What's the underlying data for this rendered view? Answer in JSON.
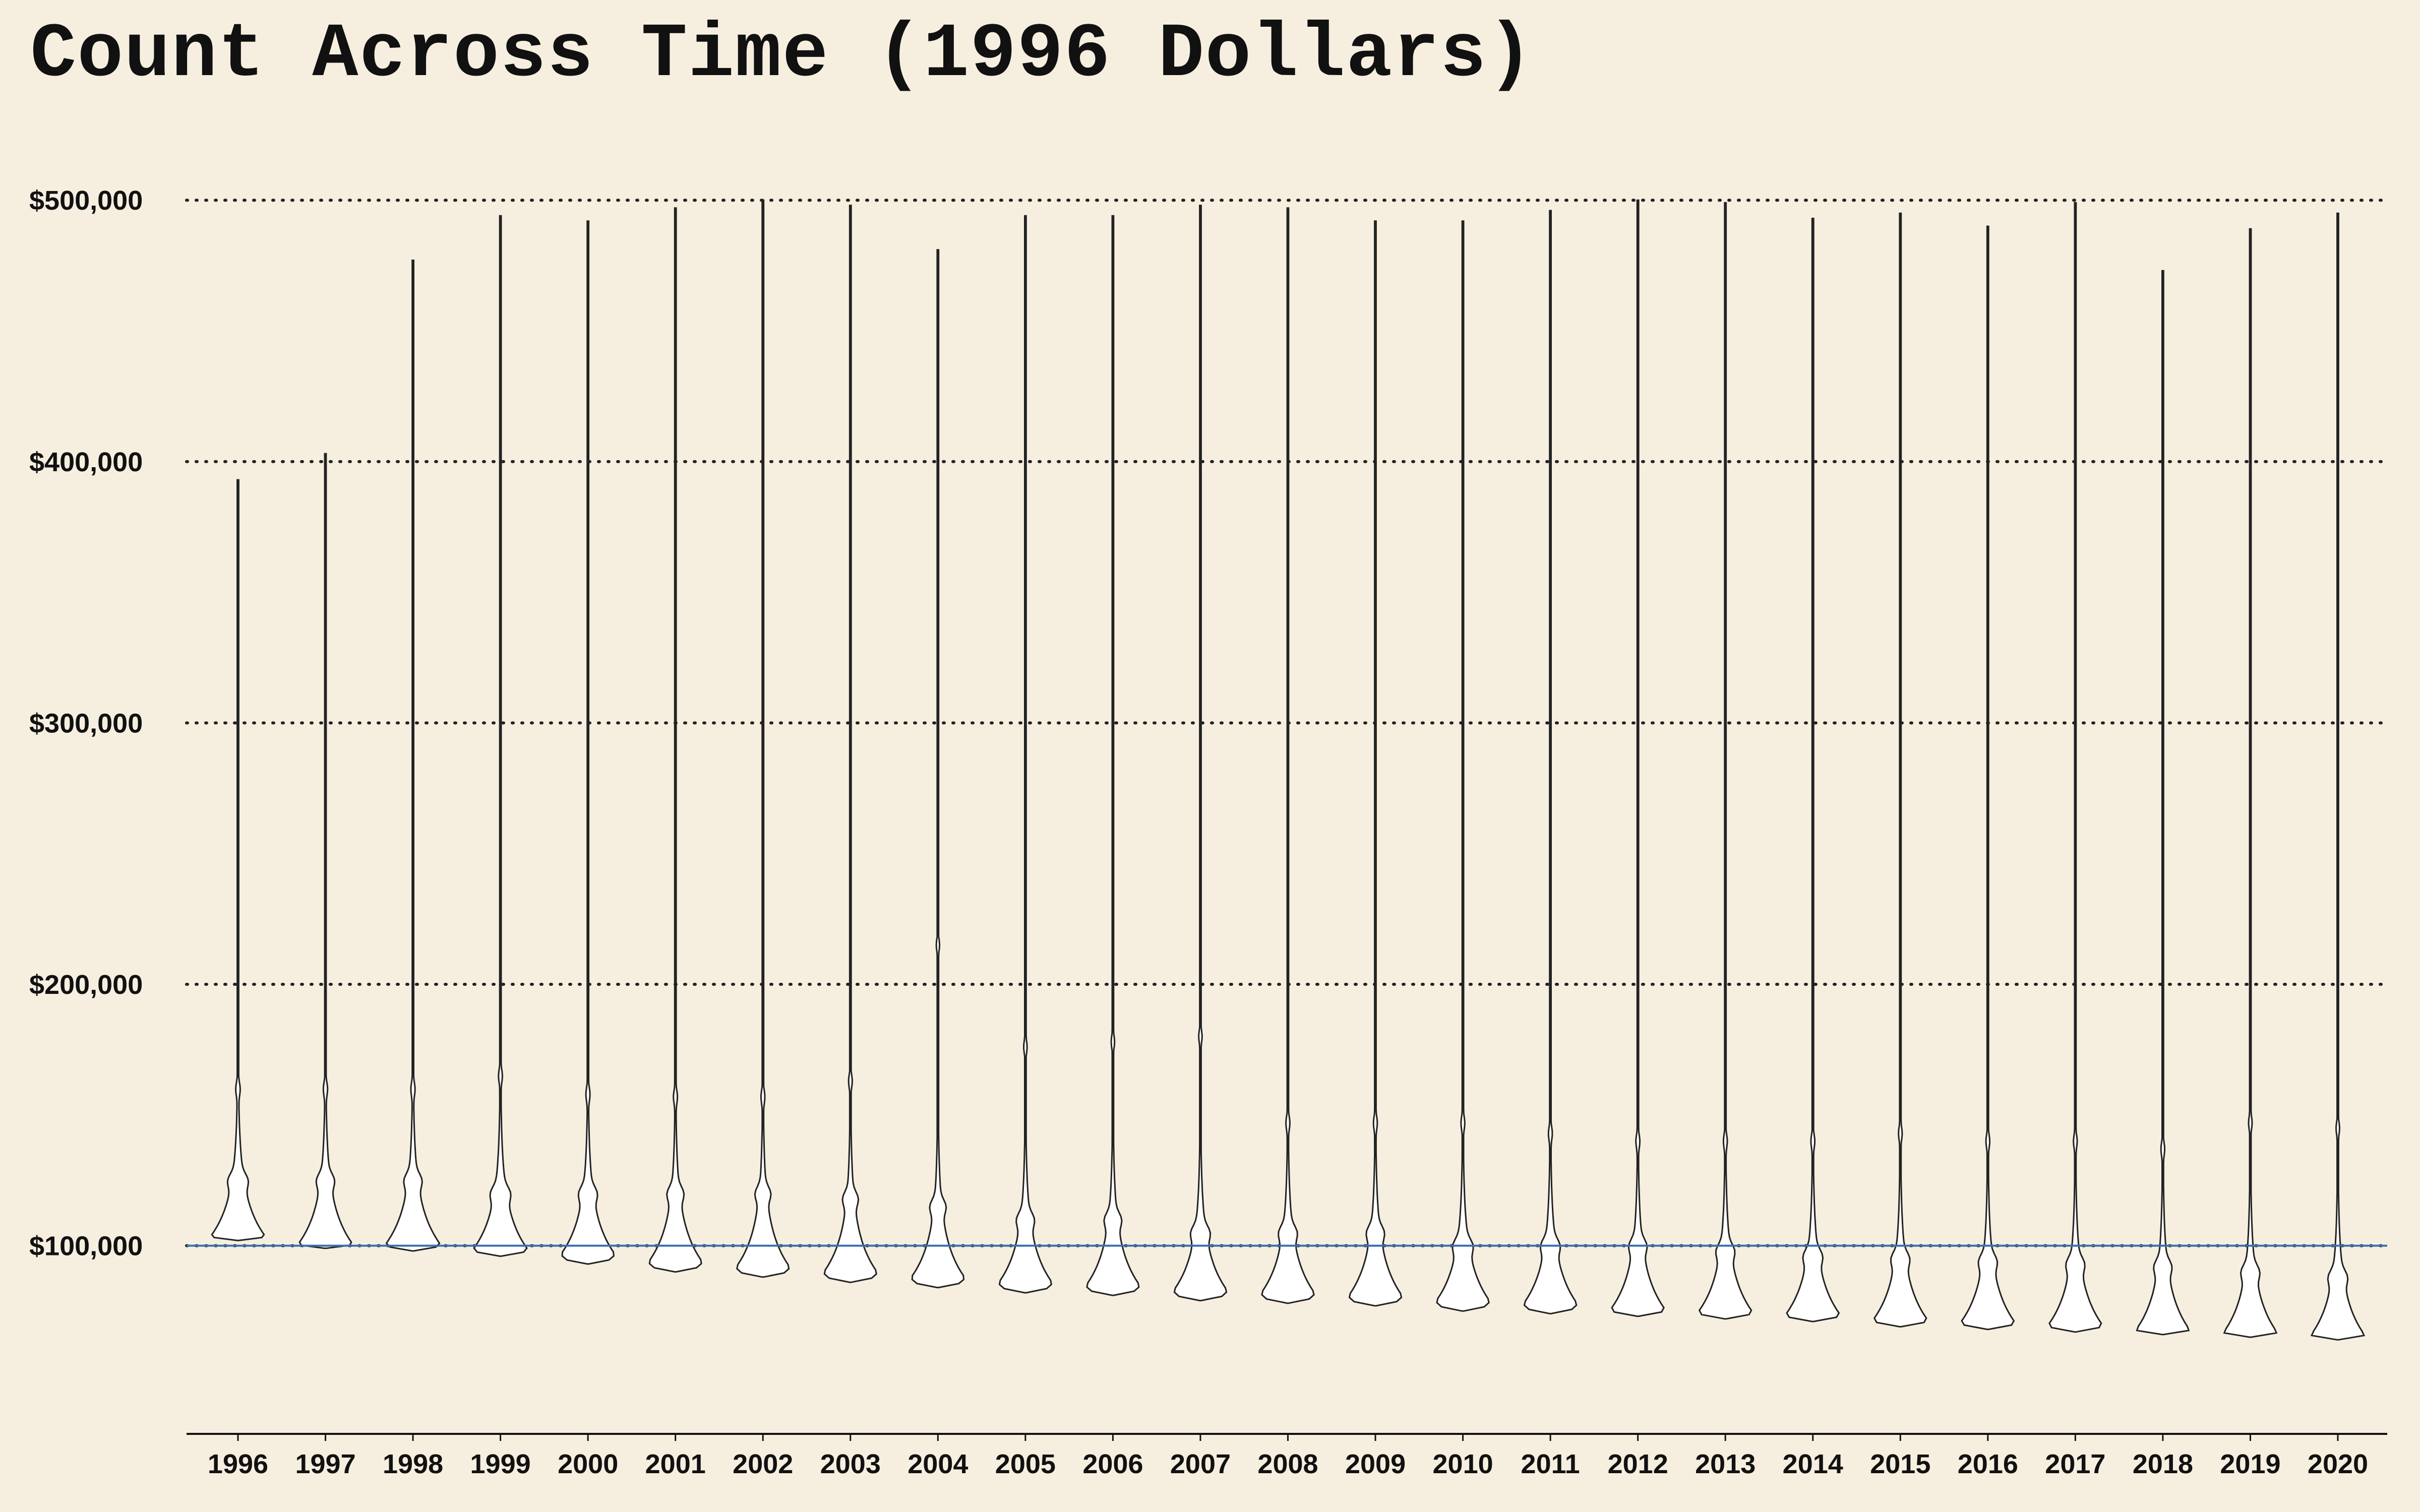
{
  "chart_data": {
    "type": "violin",
    "title": "Count Across Time (1996 Dollars)",
    "xlabel": "",
    "ylabel": "",
    "categories": [
      "1996",
      "1997",
      "1998",
      "1999",
      "2000",
      "2001",
      "2002",
      "2003",
      "2004",
      "2005",
      "2006",
      "2007",
      "2008",
      "2009",
      "2010",
      "2011",
      "2012",
      "2013",
      "2014",
      "2015",
      "2016",
      "2017",
      "2018",
      "2019",
      "2020"
    ],
    "y_ticks": [
      100000,
      200000,
      300000,
      400000,
      500000
    ],
    "y_tick_labels": [
      "$100,000",
      "$200,000",
      "$300,000",
      "$400,000",
      "$500,000"
    ],
    "ylim": [
      28000,
      512000
    ],
    "grid": "horizontal-dotted",
    "reference_line": {
      "y": 100000,
      "color": "#3a6fb0"
    },
    "series": [
      {
        "category": "1996",
        "min": 102000,
        "max": 393000,
        "mode": 104000,
        "bumps": [
          125000,
          160000
        ]
      },
      {
        "category": "1997",
        "min": 99000,
        "max": 403000,
        "mode": 101000,
        "bumps": [
          125000,
          160000
        ]
      },
      {
        "category": "1998",
        "min": 98000,
        "max": 477000,
        "mode": 101000,
        "bumps": [
          125000,
          160000
        ]
      },
      {
        "category": "1999",
        "min": 96000,
        "max": 494000,
        "mode": 99000,
        "bumps": [
          120000,
          165000
        ]
      },
      {
        "category": "2000",
        "min": 93000,
        "max": 492000,
        "mode": 97000,
        "bumps": [
          120000,
          158000
        ]
      },
      {
        "category": "2001",
        "min": 90000,
        "max": 497000,
        "mode": 94000,
        "bumps": [
          120000,
          157000
        ]
      },
      {
        "category": "2002",
        "min": 88000,
        "max": 500000,
        "mode": 92000,
        "bumps": [
          120000,
          157000
        ]
      },
      {
        "category": "2003",
        "min": 86000,
        "max": 498000,
        "mode": 90000,
        "bumps": [
          118000,
          163000
        ]
      },
      {
        "category": "2004",
        "min": 84000,
        "max": 481000,
        "mode": 88000,
        "bumps": [
          115000,
          215000
        ]
      },
      {
        "category": "2005",
        "min": 82000,
        "max": 494000,
        "mode": 86000,
        "bumps": [
          110000,
          176000
        ]
      },
      {
        "category": "2006",
        "min": 81000,
        "max": 494000,
        "mode": 85000,
        "bumps": [
          110000,
          178000
        ]
      },
      {
        "category": "2007",
        "min": 79000,
        "max": 498000,
        "mode": 83000,
        "bumps": [
          105000,
          180000
        ]
      },
      {
        "category": "2008",
        "min": 78000,
        "max": 497000,
        "mode": 82000,
        "bumps": [
          105000,
          147000
        ]
      },
      {
        "category": "2009",
        "min": 77000,
        "max": 492000,
        "mode": 81000,
        "bumps": [
          105000,
          147000
        ]
      },
      {
        "category": "2010",
        "min": 75000,
        "max": 492000,
        "mode": 79000,
        "bumps": [
          100000,
          147000
        ]
      },
      {
        "category": "2011",
        "min": 74000,
        "max": 496000,
        "mode": 78000,
        "bumps": [
          100000,
          143000
        ]
      },
      {
        "category": "2012",
        "min": 73000,
        "max": 500000,
        "mode": 76000,
        "bumps": [
          100000,
          140000
        ]
      },
      {
        "category": "2013",
        "min": 72000,
        "max": 499000,
        "mode": 75000,
        "bumps": [
          98000,
          140000
        ]
      },
      {
        "category": "2014",
        "min": 71000,
        "max": 493000,
        "mode": 74000,
        "bumps": [
          96000,
          140000
        ]
      },
      {
        "category": "2015",
        "min": 69000,
        "max": 495000,
        "mode": 72000,
        "bumps": [
          95000,
          143000
        ]
      },
      {
        "category": "2016",
        "min": 68000,
        "max": 490000,
        "mode": 71000,
        "bumps": [
          94000,
          140000
        ]
      },
      {
        "category": "2017",
        "min": 67000,
        "max": 499000,
        "mode": 70000,
        "bumps": [
          93000,
          140000
        ]
      },
      {
        "category": "2018",
        "min": 66000,
        "max": 473000,
        "mode": 68000,
        "bumps": [
          92000,
          137000
        ]
      },
      {
        "category": "2019",
        "min": 65000,
        "max": 489000,
        "mode": 67000,
        "bumps": [
          90000,
          147000
        ]
      },
      {
        "category": "2020",
        "min": 64000,
        "max": 495000,
        "mode": 66000,
        "bumps": [
          88000,
          145000
        ]
      }
    ]
  }
}
